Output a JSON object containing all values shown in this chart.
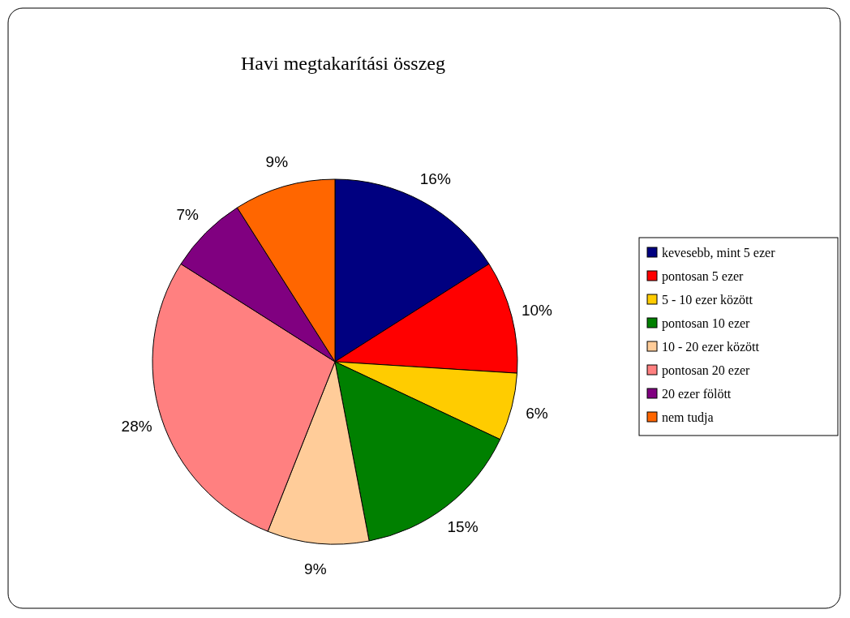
{
  "chart_data": {
    "type": "pie",
    "title": "Havi megtakarítási összeg",
    "categories": [
      "kevesebb, mint 5 ezer",
      "pontosan 5 ezer",
      "5 - 10 ezer között",
      "pontosan 10 ezer",
      "10 - 20 ezer között",
      "pontosan 20 ezer",
      "20 ezer fölött",
      "nem tudja"
    ],
    "values": [
      16,
      10,
      6,
      15,
      9,
      28,
      7,
      9
    ],
    "value_labels": [
      "16%",
      "10%",
      "6%",
      "15%",
      "9%",
      "28%",
      "7%",
      "9%"
    ],
    "colors": [
      "#000080",
      "#ff0000",
      "#ffcc00",
      "#008000",
      "#ffcc99",
      "#ff8080",
      "#800080",
      "#ff6600"
    ],
    "legend": "right"
  }
}
